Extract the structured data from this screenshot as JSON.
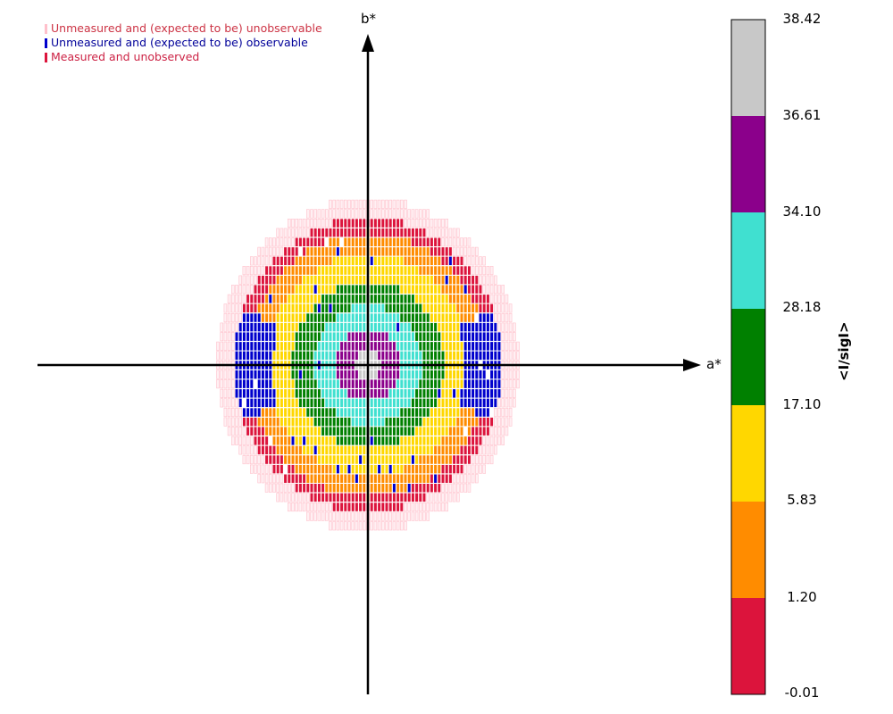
{
  "chart_data": {
    "type": "heatmap",
    "title": "",
    "xlabel": "a*",
    "ylabel": "b*",
    "grid": false,
    "legend_position": "top-left",
    "legend": [
      {
        "label": "Unmeasured and (expected to be) unobservable",
        "color": "#ffc0cb",
        "text_color": "#cc3344"
      },
      {
        "label": "Unmeasured and (expected to be) observable",
        "color": "#0000cc",
        "text_color": "#000099"
      },
      {
        "label": "Measured and unobserved",
        "color": "#dc143c",
        "text_color": "#cc2244"
      }
    ],
    "colorbar": {
      "title": "<I/sigI>",
      "tick_labels": [
        "38.42",
        "36.61",
        "34.10",
        "28.18",
        "17.10",
        "5.83",
        "1.20",
        "-0.01"
      ],
      "bins": [
        {
          "from": -0.01,
          "to": 1.2,
          "color": "#dc143c"
        },
        {
          "from": 1.2,
          "to": 5.83,
          "color": "#ff8c00"
        },
        {
          "from": 5.83,
          "to": 17.1,
          "color": "#ffd700"
        },
        {
          "from": 17.1,
          "to": 28.18,
          "color": "#008000"
        },
        {
          "from": 28.18,
          "to": 34.1,
          "color": "#40e0d0"
        },
        {
          "from": 34.1,
          "to": 36.61,
          "color": "#8b008b"
        },
        {
          "from": 36.61,
          "to": 38.42,
          "color": "#c8c8c8"
        }
      ]
    },
    "ring_profile_index_radius": [
      {
        "radius": 1.5,
        "bin": 6
      },
      {
        "radius": 3.9,
        "bin": 5
      },
      {
        "radius": 6.3,
        "bin": 4
      },
      {
        "radius": 8.8,
        "bin": 3
      },
      {
        "radius": 11.7,
        "bin": 2
      },
      {
        "radius": 14.0,
        "bin": 1
      },
      {
        "radius": 15.6,
        "bin": 0
      }
    ],
    "hkl_index_max": 18,
    "observable_sectors": "wedges along the a* axis beyond radius 11 are unmeasured but observable"
  }
}
